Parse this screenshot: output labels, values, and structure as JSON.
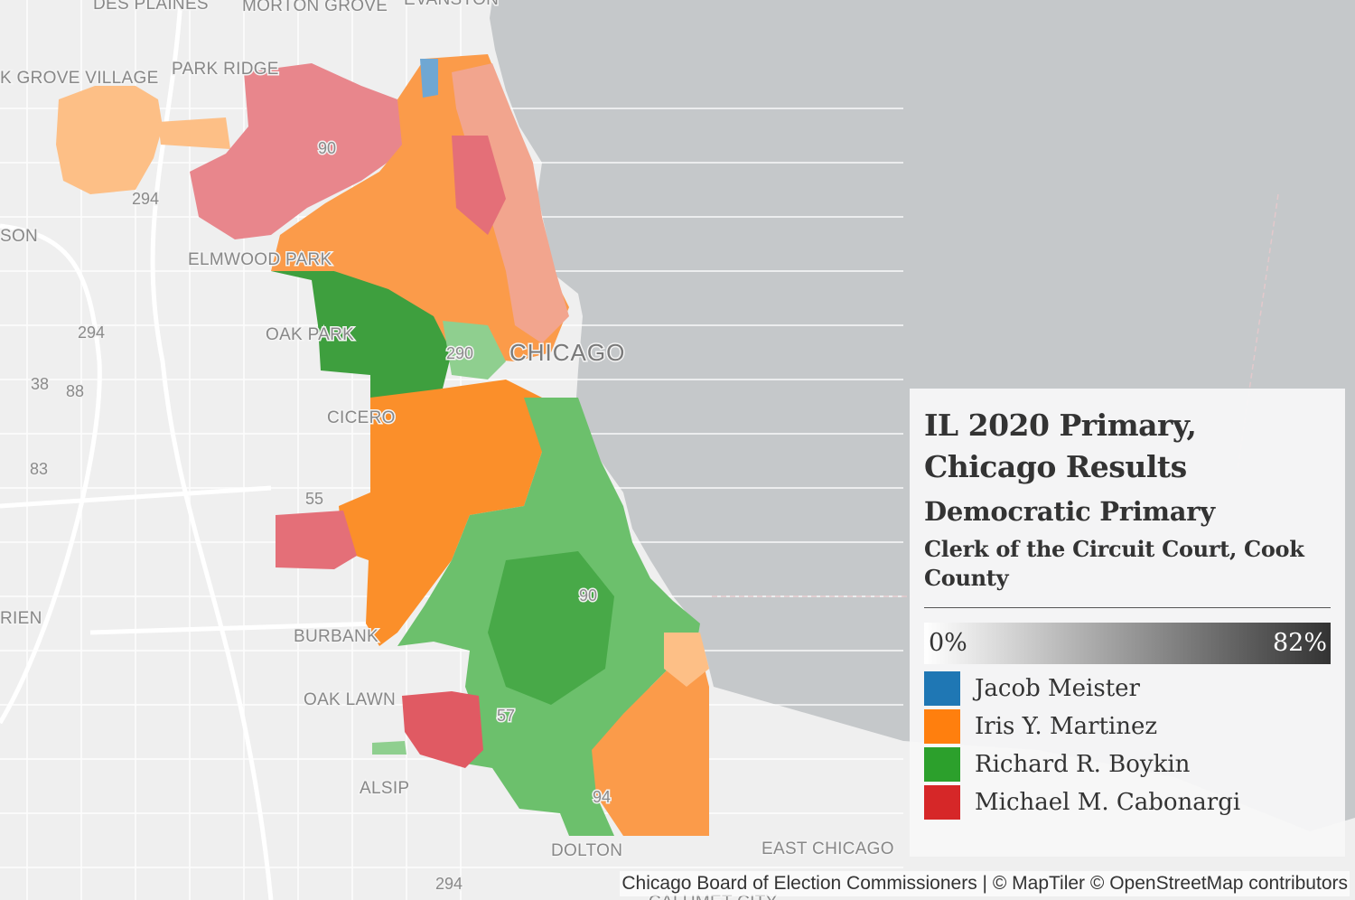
{
  "legend": {
    "title": "IL 2020 Primary, Chicago Results",
    "subtitle": "Democratic Primary",
    "race": "Clerk of the Circuit Court, Cook County",
    "scale_min": "0%",
    "scale_max": "82%",
    "candidates": [
      {
        "name": "Jacob Meister",
        "color": "#1f77b4"
      },
      {
        "name": "Iris Y. Martinez",
        "color": "#ff7f0e"
      },
      {
        "name": "Richard R. Boykin",
        "color": "#2ca02c"
      },
      {
        "name": "Michael M. Cabonargi",
        "color": "#d62728"
      }
    ]
  },
  "map": {
    "city_label": "CHICAGO",
    "places": [
      "DES PLAINES",
      "MORTON GROVE",
      "EVANSTON",
      "K GROVE VILLAGE",
      "PARK RIDGE",
      "SON",
      "ELMWOOD PARK",
      "OAK PARK",
      "CICERO",
      "BURBANK",
      "OAK LAWN",
      "ALSIP",
      "DOLTON",
      "EAST CHICAGO",
      "RIEN",
      "CALUMET CITY"
    ],
    "shields": [
      "90",
      "294",
      "294",
      "290",
      "38",
      "88",
      "83",
      "55",
      "90",
      "57",
      "94",
      "294"
    ],
    "water_color": "#c5c8ca",
    "land_color": "#efefef"
  },
  "attribution": "Chicago Board of Election Commissioners | © MapTiler © OpenStreetMap contributors"
}
